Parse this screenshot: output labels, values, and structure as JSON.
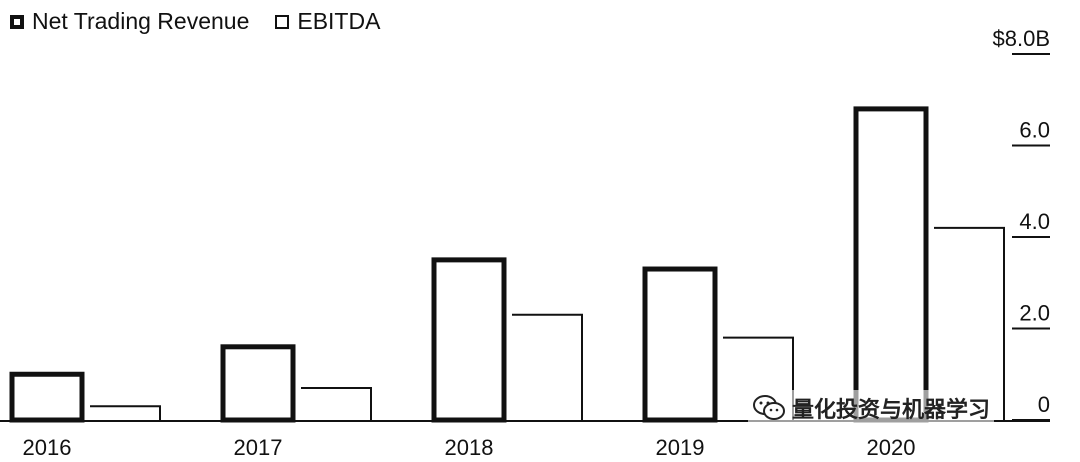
{
  "legend": {
    "net_trading_revenue": "Net Trading Revenue",
    "ebitda": "EBITDA"
  },
  "watermark": {
    "text": "量化投资与机器学习",
    "icon": "wechat-icon"
  },
  "chart_data": {
    "type": "bar",
    "categories": [
      "2016",
      "2017",
      "2018",
      "2019",
      "2020"
    ],
    "series": [
      {
        "name": "Net Trading Revenue",
        "values": [
          1.0,
          1.6,
          3.5,
          3.3,
          6.8
        ],
        "style": "thick-outline"
      },
      {
        "name": "EBITDA",
        "values": [
          0.3,
          0.7,
          2.3,
          1.8,
          4.2
        ],
        "style": "thin-outline"
      }
    ],
    "yticks": [
      "0",
      "2.0",
      "4.0",
      "6.0",
      "$8.0B"
    ],
    "ytick_values": [
      0,
      2,
      4,
      6,
      8
    ],
    "ylim": [
      0,
      8
    ],
    "title": "",
    "xlabel": "",
    "ylabel": "",
    "y_axis_side": "right",
    "grid": false,
    "legend_position": "top-left",
    "colors": {
      "stroke": "#111111",
      "background": "#ffffff"
    }
  }
}
